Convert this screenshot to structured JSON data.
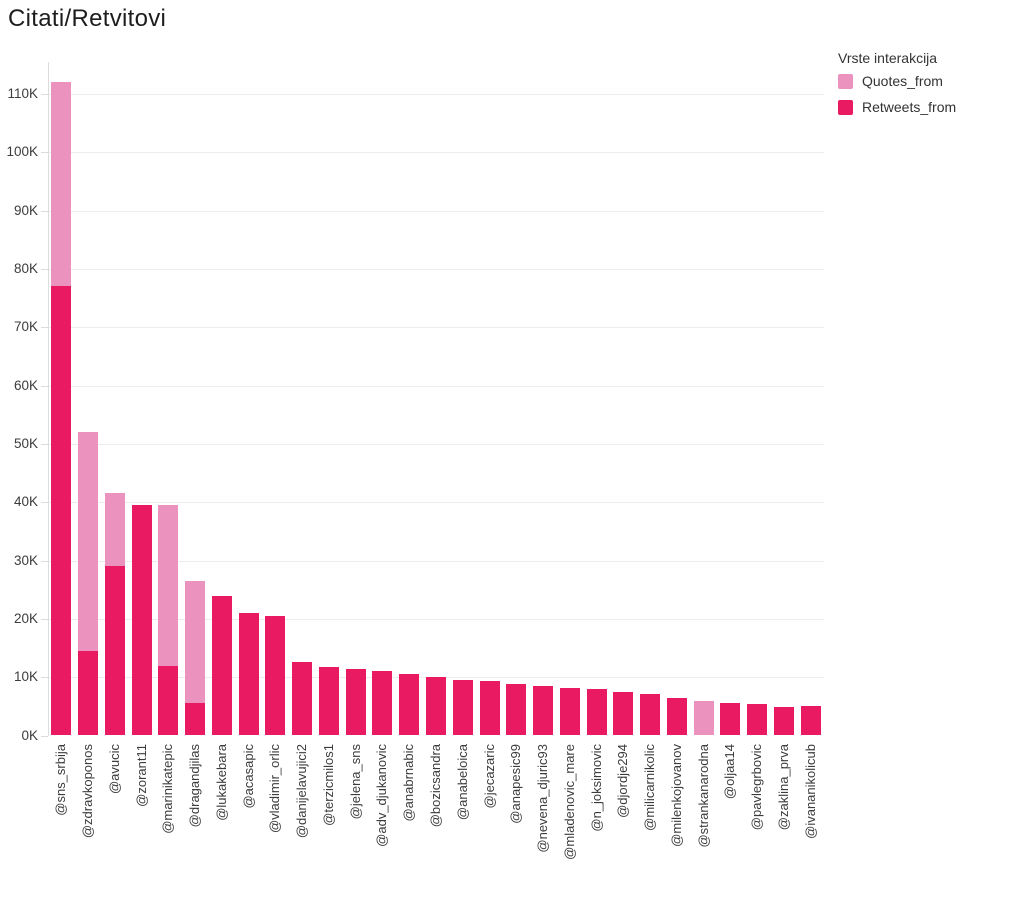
{
  "page": {
    "background": "#ffffff"
  },
  "chart_data": {
    "type": "bar",
    "stacked": true,
    "orientation": "vertical",
    "title": "Citati/Retvitovi",
    "legend_title": "Vrste interakcija",
    "legend_position": "top-right",
    "grid": true,
    "xlabel": "",
    "ylabel": "",
    "ylim": [
      0,
      115000
    ],
    "y_tick_step": 10000,
    "y_tick_labels": [
      "0K",
      "10K",
      "20K",
      "30K",
      "40K",
      "50K",
      "60K",
      "70K",
      "80K",
      "90K",
      "100K",
      "110K"
    ],
    "categories": [
      "@sns_srbija",
      "@zdravkoponos",
      "@avucic",
      "@zorant11",
      "@marinikatepic",
      "@dragandjilas",
      "@lukakebara",
      "@acasapic",
      "@vladimir_orlic",
      "@danijelavujici2",
      "@terzicmilos1",
      "@jelena_sns",
      "@adv_djukanovic",
      "@anabrnabic",
      "@bozicsandra",
      "@anabeloica",
      "@jecazaric",
      "@anapesic99",
      "@nevena_djuric93",
      "@mladenovic_mare",
      "@n_joksimovic",
      "@djordje294",
      "@milicarnikolic",
      "@milenkojovanov",
      "@strankanarodna",
      "@oljaa14",
      "@pavlegrbovic",
      "@zaklina_prva",
      "@ivananikolicub"
    ],
    "series": [
      {
        "name": "Quotes_from",
        "color": "#EC92BF",
        "values": [
          35000,
          37500,
          12500,
          0,
          27500,
          21000,
          0,
          0,
          0,
          0,
          0,
          0,
          0,
          0,
          0,
          0,
          0,
          0,
          0,
          0,
          0,
          0,
          0,
          0,
          6000,
          0,
          0,
          0,
          0
        ]
      },
      {
        "name": "Retweets_from",
        "color": "#EA1A62",
        "values": [
          77000,
          14500,
          29000,
          39500,
          12000,
          5500,
          24000,
          21000,
          20500,
          12600,
          11700,
          11400,
          11100,
          10600,
          10100,
          9600,
          9400,
          8800,
          8500,
          8200,
          7900,
          7400,
          7100,
          6500,
          0,
          5500,
          5400,
          4900,
          5100
        ]
      }
    ],
    "colors": {
      "grid": "#ececec",
      "axis": "#dcdcdc",
      "title_text": "#1d1d1d",
      "label_text": "#3c3c3c"
    }
  }
}
